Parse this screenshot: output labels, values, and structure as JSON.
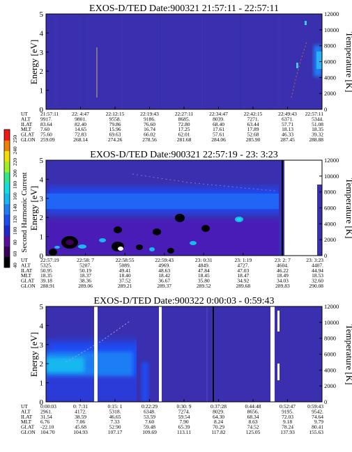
{
  "colorbar": {
    "label": "Second Harmonic Current",
    "ticks": [
      "40",
      "60",
      "80",
      "100",
      "120",
      "140",
      "160",
      "180",
      "200",
      "220",
      "240",
      "250"
    ],
    "colors": [
      "#000000",
      "#3a0058",
      "#5a0f9a",
      "#1e2ad0",
      "#1d4cf5",
      "#1e7ef5",
      "#18b8f0",
      "#10e0e0",
      "#2ee88a",
      "#9ef020",
      "#f0e000",
      "#f08000",
      "#f01818"
    ]
  },
  "chart_data": [
    {
      "type": "heatmap",
      "title": "EXOS-D/TED   Date:900321  21:57:11 - 22:57:11",
      "ylabel": "Energy [eV]",
      "ylabel_right": "Temperature [K]",
      "ylim": [
        0,
        5
      ],
      "yticks": [
        "0",
        "1",
        "2",
        "3",
        "4",
        "5"
      ],
      "ylim_right": [
        0,
        12000
      ],
      "yticks_right": [
        "0",
        "2000",
        "4000",
        "6000",
        "8000",
        "10000",
        "12000"
      ],
      "grid": false,
      "ephemeris_labels": [
        "UT",
        "ALT",
        "ILAT",
        "MLT",
        "GLAT",
        "GLON"
      ],
      "ephemeris": [
        [
          "21:57:11",
          "9917.",
          "83.64",
          "7.60",
          "75.60",
          "259.09"
        ],
        [
          "22: 4:47",
          "9801.",
          "82.40",
          "14.65",
          "72.83",
          "268.14"
        ],
        [
          "22:12:15",
          "9558.",
          "79.86",
          "15.96",
          "69.63",
          "274.26"
        ],
        [
          "22:19:43",
          "9186.",
          "76.60",
          "16.74",
          "66.02",
          "278.56"
        ],
        [
          "22:27:11",
          "8685.",
          "72.80",
          "17.25",
          "62.01",
          "281.68"
        ],
        [
          "22:34:47",
          "8039.",
          "68.40",
          "17.61",
          "57.61",
          "284.06"
        ],
        [
          "22:42:15",
          "7271.",
          "63.44",
          "17.89",
          "52.68",
          "285.90"
        ],
        [
          "22:49:43",
          "6371.",
          "57.71",
          "18.13",
          "46.33",
          "287.45"
        ],
        [
          "22:57:11",
          "5344.",
          "51.08",
          "18.35",
          "39.32",
          "288.88"
        ]
      ]
    },
    {
      "type": "heatmap",
      "title": "EXOS-D/TED   Date:900321  22:57:19 - 23: 3:23",
      "ylabel": "Energy [eV]",
      "ylabel_right": "Temperature [K]",
      "ylim": [
        0,
        5
      ],
      "yticks": [
        "0",
        "1",
        "2",
        "3",
        "4",
        "5"
      ],
      "ylim_right": [
        0,
        12000
      ],
      "yticks_right": [
        "0",
        "2000",
        "4000",
        "6000",
        "8000",
        "10000",
        "12000"
      ],
      "grid": false,
      "ephemeris_labels": [
        "UT",
        "ALT",
        "ILAT",
        "MLT",
        "GLAT",
        "GLON"
      ],
      "ephemeris": [
        [
          "22:57:19",
          "5325.",
          "50.95",
          "18.35",
          "39.18",
          "288.91"
        ],
        [
          "22:58: 7",
          "5207.",
          "50.19",
          "18.37",
          "38.36",
          "289.06"
        ],
        [
          "22:58:55",
          "5089.",
          "49.41",
          "18.40",
          "37.52",
          "289.21"
        ],
        [
          "22:59:43",
          "4969.",
          "48.63",
          "18.42",
          "36.67",
          "289.37"
        ],
        [
          "23: 0:31",
          "4849.",
          "47.84",
          "18.45",
          "35.80",
          "289.52"
        ],
        [
          "23: 1:19",
          "4727.",
          "47.03",
          "18.47",
          "34.92",
          "289.68"
        ],
        [
          "23: 2: 7",
          "4604.",
          "46.22",
          "18.49",
          "34.03",
          "289.83"
        ],
        [
          "23: 3:23",
          "4407.",
          "44.94",
          "18.53",
          "32.60",
          "290.08"
        ]
      ]
    },
    {
      "type": "heatmap",
      "title": "EXOS-D/TED   Date:900322   0:00:03 - 0:59:43",
      "ylabel": "Energy [eV]",
      "ylabel_right": "Temperature [K]",
      "ylim": [
        0,
        5
      ],
      "yticks": [
        "0",
        "1",
        "2",
        "3",
        "4",
        "5"
      ],
      "ylim_right": [
        0,
        12000
      ],
      "yticks_right": [
        "0",
        "2000",
        "4000",
        "6000",
        "8000",
        "10000",
        "12000"
      ],
      "grid": false,
      "ephemeris_labels": [
        "UT",
        "ALT",
        "ILAT",
        "MLT",
        "GLAT",
        "GLON"
      ],
      "ephemeris": [
        [
          "0:00:03",
          "2961.",
          "31.54",
          "6.76",
          "-22.10",
          "104.70"
        ],
        [
          "0: 7:31",
          "4172.",
          "38.59",
          "7.06",
          "45.68",
          "104.93"
        ],
        [
          "0:15: 1",
          "5318.",
          "46.65",
          "7.33",
          "52.90",
          "107.17"
        ],
        [
          "0:22:29",
          "6348.",
          "53.59",
          "7.60",
          "59.48",
          "109.69"
        ],
        [
          "0:30: 9",
          "7274.",
          "59.54",
          "7.90",
          "65.39",
          "113.11"
        ],
        [
          "0:37:28",
          "8029.",
          "64.30",
          "8.24",
          "70.29",
          "117.82"
        ],
        [
          "0:44:48",
          "8656.",
          "68.34",
          "8.63",
          "74.52",
          "125.05"
        ],
        [
          "0:52:47",
          "9195.",
          "72.03",
          "9.18",
          "78.24",
          "137.93"
        ],
        [
          "0:59:43",
          "9542.",
          "74.64",
          "9.79",
          "80.41",
          "155.63"
        ]
      ]
    }
  ]
}
